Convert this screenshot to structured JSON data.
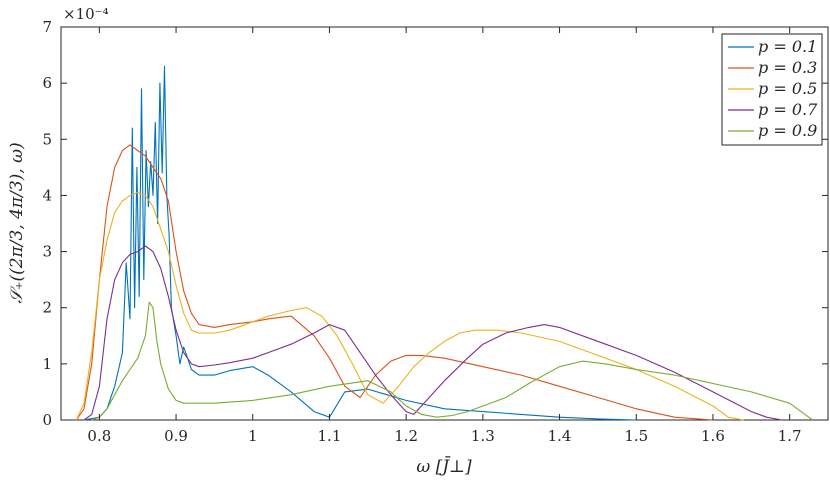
{
  "chart_data": {
    "type": "line",
    "title": "",
    "xlabel": "ω [J̄⊥]",
    "ylabel": "𝒮₊((2π/3, 4π/3), ω)",
    "scale_exponent_label": "×10⁻⁴",
    "xlim": [
      0.75,
      1.75
    ],
    "ylim": [
      0,
      7
    ],
    "x_ticks": [
      0.8,
      0.9,
      1.0,
      1.1,
      1.2,
      1.3,
      1.4,
      1.5,
      1.6,
      1.7
    ],
    "x_tick_labels": [
      "0.8",
      "0.9",
      "1",
      "1.1",
      "1.2",
      "1.3",
      "1.4",
      "1.5",
      "1.6",
      "1.7"
    ],
    "y_ticks": [
      0,
      1,
      2,
      3,
      4,
      5,
      6,
      7
    ],
    "y_tick_labels": [
      "0",
      "1",
      "2",
      "3",
      "4",
      "5",
      "6",
      "7"
    ],
    "grid": false,
    "legend_position": "top-right",
    "series": [
      {
        "name": "p = 0.1",
        "color": "#0072BD",
        "x": [
          0.78,
          0.8,
          0.81,
          0.82,
          0.83,
          0.835,
          0.84,
          0.843,
          0.846,
          0.849,
          0.852,
          0.855,
          0.858,
          0.861,
          0.864,
          0.867,
          0.87,
          0.873,
          0.876,
          0.879,
          0.882,
          0.885,
          0.888,
          0.891,
          0.894,
          0.9,
          0.905,
          0.91,
          0.915,
          0.92,
          0.925,
          0.93,
          0.95,
          0.97,
          1.0,
          1.02,
          1.05,
          1.08,
          1.1,
          1.12,
          1.15,
          1.2,
          1.25,
          1.3,
          1.35,
          1.4,
          1.45,
          1.5
        ],
        "values": [
          0,
          0.05,
          0.2,
          0.6,
          1.2,
          2.8,
          1.8,
          5.2,
          2.0,
          4.5,
          2.2,
          5.9,
          2.5,
          4.8,
          3.8,
          4.6,
          4.0,
          5.3,
          3.5,
          6.0,
          4.4,
          6.3,
          4.0,
          3.3,
          2.0,
          1.5,
          1.0,
          1.3,
          1.1,
          0.9,
          0.85,
          0.8,
          0.8,
          0.88,
          0.95,
          0.8,
          0.5,
          0.15,
          0.05,
          0.5,
          0.55,
          0.35,
          0.2,
          0.15,
          0.1,
          0.05,
          0.02,
          0
        ]
      },
      {
        "name": "p = 0.3",
        "color": "#D95319",
        "x": [
          0.77,
          0.78,
          0.79,
          0.8,
          0.81,
          0.82,
          0.83,
          0.84,
          0.85,
          0.86,
          0.87,
          0.88,
          0.89,
          0.9,
          0.91,
          0.92,
          0.93,
          0.95,
          0.97,
          1.0,
          1.02,
          1.05,
          1.08,
          1.1,
          1.12,
          1.14,
          1.16,
          1.18,
          1.2,
          1.22,
          1.25,
          1.3,
          1.35,
          1.4,
          1.45,
          1.5,
          1.55,
          1.6
        ],
        "values": [
          0,
          0.2,
          1.0,
          2.5,
          3.8,
          4.5,
          4.8,
          4.9,
          4.8,
          4.7,
          4.5,
          4.3,
          3.9,
          3.0,
          2.3,
          1.9,
          1.7,
          1.65,
          1.7,
          1.75,
          1.8,
          1.85,
          1.5,
          1.1,
          0.6,
          0.4,
          0.8,
          1.05,
          1.15,
          1.15,
          1.1,
          0.95,
          0.8,
          0.6,
          0.4,
          0.2,
          0.05,
          0
        ]
      },
      {
        "name": "p = 0.5",
        "color": "#EDB120",
        "x": [
          0.77,
          0.78,
          0.79,
          0.8,
          0.81,
          0.82,
          0.83,
          0.84,
          0.85,
          0.86,
          0.87,
          0.88,
          0.89,
          0.9,
          0.91,
          0.92,
          0.93,
          0.95,
          0.97,
          1.0,
          1.02,
          1.05,
          1.07,
          1.09,
          1.11,
          1.13,
          1.15,
          1.17,
          1.19,
          1.21,
          1.23,
          1.25,
          1.27,
          1.29,
          1.32,
          1.35,
          1.4,
          1.45,
          1.5,
          1.55,
          1.6,
          1.62,
          1.64
        ],
        "values": [
          0,
          0.3,
          1.2,
          2.5,
          3.2,
          3.7,
          3.9,
          4.0,
          4.05,
          4.0,
          3.8,
          3.4,
          3.0,
          2.4,
          1.9,
          1.6,
          1.55,
          1.55,
          1.6,
          1.75,
          1.85,
          1.95,
          2.0,
          1.85,
          1.5,
          1.0,
          0.45,
          0.3,
          0.6,
          0.95,
          1.2,
          1.4,
          1.55,
          1.6,
          1.6,
          1.55,
          1.4,
          1.15,
          0.9,
          0.6,
          0.25,
          0.05,
          0
        ]
      },
      {
        "name": "p = 0.7",
        "color": "#7E2F8E",
        "x": [
          0.78,
          0.79,
          0.8,
          0.81,
          0.82,
          0.83,
          0.84,
          0.85,
          0.86,
          0.87,
          0.88,
          0.89,
          0.9,
          0.91,
          0.92,
          0.93,
          0.95,
          0.97,
          1.0,
          1.02,
          1.05,
          1.08,
          1.1,
          1.12,
          1.14,
          1.16,
          1.18,
          1.2,
          1.21,
          1.23,
          1.25,
          1.28,
          1.3,
          1.33,
          1.36,
          1.38,
          1.4,
          1.43,
          1.46,
          1.5,
          1.55,
          1.6,
          1.65,
          1.67,
          1.69
        ],
        "values": [
          0,
          0.1,
          0.6,
          1.8,
          2.5,
          2.8,
          2.95,
          3.0,
          3.1,
          3.0,
          2.7,
          2.2,
          1.6,
          1.2,
          1.0,
          0.95,
          0.98,
          1.02,
          1.1,
          1.2,
          1.35,
          1.55,
          1.7,
          1.6,
          1.2,
          0.8,
          0.45,
          0.15,
          0.1,
          0.4,
          0.7,
          1.1,
          1.35,
          1.55,
          1.65,
          1.7,
          1.65,
          1.5,
          1.35,
          1.15,
          0.85,
          0.5,
          0.15,
          0.05,
          0
        ]
      },
      {
        "name": "p = 0.9",
        "color": "#77AC30",
        "x": [
          0.79,
          0.8,
          0.81,
          0.82,
          0.83,
          0.84,
          0.85,
          0.86,
          0.865,
          0.87,
          0.875,
          0.88,
          0.89,
          0.9,
          0.91,
          0.93,
          0.95,
          1.0,
          1.05,
          1.1,
          1.15,
          1.18,
          1.2,
          1.22,
          1.24,
          1.26,
          1.28,
          1.3,
          1.33,
          1.36,
          1.4,
          1.43,
          1.46,
          1.5,
          1.55,
          1.6,
          1.65,
          1.7,
          1.72,
          1.73
        ],
        "values": [
          0,
          0.05,
          0.2,
          0.45,
          0.7,
          0.9,
          1.1,
          1.5,
          2.1,
          2.0,
          1.4,
          1.0,
          0.55,
          0.35,
          0.3,
          0.3,
          0.3,
          0.35,
          0.45,
          0.6,
          0.7,
          0.5,
          0.25,
          0.1,
          0.05,
          0.08,
          0.15,
          0.25,
          0.4,
          0.65,
          0.95,
          1.05,
          1.0,
          0.9,
          0.8,
          0.65,
          0.5,
          0.3,
          0.1,
          0
        ]
      }
    ]
  }
}
